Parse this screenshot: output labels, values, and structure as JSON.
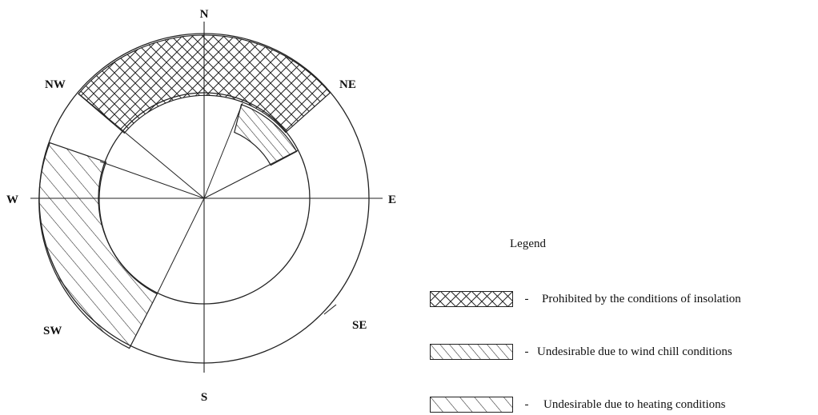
{
  "directions": {
    "n": "N",
    "ne": "NE",
    "e": "E",
    "se": "SE",
    "s": "S",
    "sw": "SW",
    "w": "W",
    "nw": "NW"
  },
  "legend": {
    "title": "Legend",
    "items": [
      {
        "pattern": "crosshatch",
        "dash": "-",
        "label": "Prohibited by the conditions of insolation"
      },
      {
        "pattern": "dense-diagonal",
        "dash": "-",
        "label": "Undesirable due to wind chill conditions"
      },
      {
        "pattern": "sparse-diagonal",
        "dash": "-",
        "label": "Undesirable due to heating conditions"
      }
    ]
  },
  "colors": {
    "line": "#222222",
    "background": "#ffffff"
  }
}
